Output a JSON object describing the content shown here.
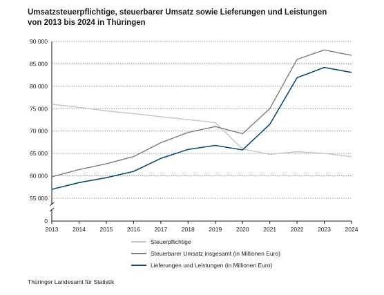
{
  "title_line1": "Umsatzsteuerpflichtige, steuerbarer Umsatz sowie Lieferungen und Leistungen",
  "title_line2": "von 2013 bis 2024 in Thüringen",
  "source": "Thüringer Landesamt für Statistik",
  "chart_data": {
    "type": "line",
    "title": "Umsatzsteuerpflichtige, steuerbarer Umsatz sowie Lieferungen und Leistungen von 2013 bis 2024 in Thüringen",
    "xlabel": "",
    "ylabel": "",
    "x": [
      "2013",
      "2014",
      "2015",
      "2016",
      "2017",
      "2018",
      "2019",
      "2020",
      "2021",
      "2022",
      "2023",
      "2024"
    ],
    "y_ticks": [
      "90 000",
      "85 000",
      "80 000",
      "75 000",
      "70 000",
      "65 000",
      "60 000",
      "55 000",
      "0"
    ],
    "y_tick_values": [
      90000,
      85000,
      80000,
      75000,
      70000,
      65000,
      60000,
      55000
    ],
    "y_zero_label": "0",
    "ylim": [
      53000,
      90000
    ],
    "axis_break": true,
    "grid": "horizontal dotted",
    "legend_position": "bottom",
    "series": [
      {
        "name": "Steuerpflichtige",
        "color": "#c4c4c4",
        "values": [
          76000,
          75300,
          74500,
          73900,
          73200,
          72600,
          71900,
          66000,
          64800,
          65400,
          65000,
          64300
        ]
      },
      {
        "name": "Steuerbarer Umsatz insgesamt (in Millionen Euro)",
        "color": "#7a7a7a",
        "values": [
          59800,
          61400,
          62700,
          64300,
          67400,
          69700,
          71000,
          69400,
          75000,
          86000,
          88100,
          86900
        ]
      },
      {
        "name": "Lieferungen und Leistungen (in Millionen Euro)",
        "color": "#0b4a6f",
        "values": [
          57000,
          58500,
          59600,
          61000,
          63900,
          65900,
          66800,
          65800,
          71500,
          81900,
          84200,
          83100
        ]
      }
    ]
  }
}
